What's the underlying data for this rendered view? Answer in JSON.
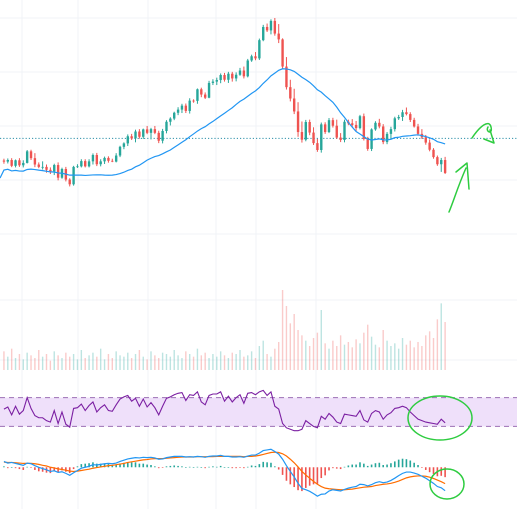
{
  "colors": {
    "up": "#26a69a",
    "down": "#ef5350",
    "ma": "#2196f3",
    "hline": "#2a8fa8",
    "rsi_line": "#7b1fa2",
    "rsi_band": "#efe0fa",
    "rsi_bounds": "#9c6fb5",
    "macd": "#2196f3",
    "signal": "#ff6d00",
    "hist_up": "#26a69a",
    "hist_down": "#ef5350",
    "annotation": "#2ecc40",
    "grid": "#f0f3f7"
  },
  "chart_data": [
    {
      "type": "candlestick",
      "title": "",
      "xlabel": "",
      "ylabel": "",
      "grid": true,
      "ylim": [
        0,
        100
      ],
      "overlays": [
        {
          "type": "moving-average",
          "color": "#2196f3"
        },
        {
          "type": "horizontal-dotted-line",
          "value": 49.1
        }
      ],
      "candles": [
        [
          40.7,
          41.4,
          39.5,
          40.3
        ],
        [
          40.3,
          41.5,
          39.6,
          40.9
        ],
        [
          40.9,
          41.6,
          38.2,
          38.7
        ],
        [
          38.7,
          41.1,
          38.1,
          40.8
        ],
        [
          40.8,
          41.6,
          38.3,
          38.9
        ],
        [
          38.9,
          40.8,
          38.1,
          39.8
        ],
        [
          39.8,
          44.7,
          39.6,
          44.2
        ],
        [
          44.2,
          44.8,
          40.9,
          41.6
        ],
        [
          41.6,
          43.5,
          38.2,
          39.2
        ],
        [
          39.2,
          40.0,
          37.8,
          38.3
        ],
        [
          38.3,
          40.4,
          37.3,
          38.3
        ],
        [
          38.3,
          39.2,
          36.1,
          37.2
        ],
        [
          37.2,
          38.1,
          35.6,
          36.6
        ],
        [
          36.6,
          39.5,
          35.2,
          39.0
        ],
        [
          39.0,
          40.0,
          33.2,
          34.2
        ],
        [
          34.2,
          38.0,
          33.8,
          37.5
        ],
        [
          37.5,
          38.3,
          32.8,
          33.5
        ],
        [
          33.5,
          34.0,
          30.9,
          31.7
        ],
        [
          31.7,
          38.7,
          31.2,
          38.3
        ],
        [
          38.3,
          39.3,
          37.9,
          38.5
        ],
        [
          38.5,
          41.2,
          38.1,
          40.5
        ],
        [
          40.5,
          41.2,
          38.1,
          38.5
        ],
        [
          38.5,
          41.2,
          38.1,
          40.4
        ],
        [
          40.4,
          43.4,
          39.2,
          42.8
        ],
        [
          42.8,
          43.6,
          38.6,
          39.3
        ],
        [
          39.3,
          41.2,
          38.5,
          40.4
        ],
        [
          40.4,
          42.2,
          39.4,
          41.7
        ],
        [
          41.7,
          42.3,
          39.9,
          40.6
        ],
        [
          40.6,
          41.4,
          40.1,
          40.3
        ],
        [
          40.3,
          43.5,
          40.0,
          42.6
        ],
        [
          42.6,
          46.3,
          42.0,
          45.9
        ],
        [
          45.9,
          47.6,
          45.0,
          47.2
        ],
        [
          47.2,
          50.6,
          46.2,
          49.9
        ],
        [
          49.9,
          50.8,
          48.5,
          49.1
        ],
        [
          49.1,
          52.4,
          47.6,
          51.7
        ],
        [
          51.7,
          52.6,
          49.0,
          49.7
        ],
        [
          49.7,
          52.8,
          48.9,
          52.5
        ],
        [
          52.5,
          53.8,
          50.7,
          51.2
        ],
        [
          51.2,
          53.1,
          48.7,
          52.6
        ],
        [
          52.6,
          53.8,
          50.7,
          51.2
        ],
        [
          51.2,
          52.0,
          47.3,
          48.2
        ],
        [
          48.2,
          52.7,
          47.2,
          51.9
        ],
        [
          51.9,
          56.0,
          51.0,
          55.4
        ],
        [
          55.4,
          57.1,
          54.0,
          56.6
        ],
        [
          56.6,
          59.2,
          56.0,
          58.8
        ],
        [
          58.8,
          60.9,
          57.9,
          60.0
        ],
        [
          60.0,
          62.2,
          58.7,
          61.5
        ],
        [
          61.5,
          62.3,
          58.7,
          59.5
        ],
        [
          59.5,
          64.3,
          58.5,
          63.4
        ],
        [
          63.4,
          63.9,
          62.6,
          63.3
        ],
        [
          63.3,
          68.0,
          62.2,
          67.7
        ],
        [
          67.7,
          68.3,
          64.7,
          65.7
        ],
        [
          65.7,
          66.5,
          64.0,
          64.5
        ],
        [
          64.5,
          70.9,
          64.3,
          70.1
        ],
        [
          70.1,
          71.5,
          69.3,
          70.6
        ],
        [
          70.6,
          72.1,
          69.3,
          71.2
        ],
        [
          71.2,
          73.7,
          70.0,
          73.1
        ],
        [
          73.1,
          73.9,
          70.6,
          71.3
        ],
        [
          71.3,
          74.3,
          70.1,
          73.6
        ],
        [
          73.6,
          74.3,
          70.6,
          71.8
        ],
        [
          71.8,
          74.1,
          70.7,
          73.2
        ],
        [
          73.2,
          75.8,
          72.8,
          74.8
        ],
        [
          74.8,
          76.3,
          71.8,
          72.6
        ],
        [
          72.6,
          79.2,
          72.2,
          78.6
        ],
        [
          78.6,
          80.8,
          78.1,
          80.2
        ],
        [
          80.2,
          81.8,
          78.7,
          79.4
        ],
        [
          79.4,
          86.9,
          78.8,
          86.3
        ],
        [
          86.3,
          92.1,
          85.9,
          91.3
        ],
        [
          91.3,
          92.6,
          89.4,
          90.0
        ],
        [
          90.0,
          94.2,
          88.5,
          93.6
        ],
        [
          93.6,
          94.7,
          88.0,
          88.8
        ],
        [
          88.8,
          92.4,
          85.2,
          86.6
        ],
        [
          86.6,
          87.0,
          75.3,
          76.3
        ],
        [
          76.3,
          79.9,
          67.6,
          68.5
        ],
        [
          68.5,
          71.3,
          63.1,
          64.2
        ],
        [
          64.2,
          67.9,
          58.3,
          59.3
        ],
        [
          59.3,
          62.8,
          49.7,
          51.5
        ],
        [
          51.5,
          55.5,
          47.5,
          48.6
        ],
        [
          48.6,
          56.1,
          48.0,
          55.3
        ],
        [
          55.3,
          56.2,
          50.3,
          51.3
        ],
        [
          51.3,
          53.3,
          46.6,
          47.3
        ],
        [
          47.3,
          48.9,
          44.0,
          44.7
        ],
        [
          44.7,
          55.1,
          43.7,
          54.4
        ],
        [
          54.4,
          55.2,
          50.8,
          51.5
        ],
        [
          51.5,
          56.8,
          51.1,
          56.0
        ],
        [
          56.0,
          56.9,
          53.2,
          53.9
        ],
        [
          53.9,
          56.2,
          48.9,
          49.4
        ],
        [
          49.4,
          51.1,
          47.7,
          48.5
        ],
        [
          48.5,
          56.2,
          47.6,
          55.4
        ],
        [
          55.4,
          56.2,
          54.1,
          54.8
        ],
        [
          54.8,
          56.4,
          53.4,
          54.2
        ],
        [
          54.2,
          55.7,
          51.9,
          53.0
        ],
        [
          53.0,
          58.0,
          52.5,
          57.5
        ],
        [
          57.5,
          58.5,
          48.3,
          48.9
        ],
        [
          48.9,
          49.7,
          44.4,
          45.1
        ],
        [
          45.1,
          52.9,
          44.3,
          52.5
        ],
        [
          52.5,
          55.6,
          52.0,
          55.0
        ],
        [
          55.0,
          56.5,
          52.9,
          53.6
        ],
        [
          53.6,
          54.5,
          46.9,
          47.7
        ],
        [
          47.7,
          51.5,
          46.9,
          50.8
        ],
        [
          50.8,
          53.5,
          49.1,
          52.6
        ],
        [
          52.6,
          57.3,
          51.7,
          56.7
        ],
        [
          56.7,
          58.0,
          56.1,
          57.2
        ],
        [
          57.2,
          59.9,
          55.7,
          59.0
        ],
        [
          59.0,
          60.8,
          57.8,
          58.3
        ],
        [
          58.3,
          59.0,
          55.3,
          56.1
        ],
        [
          56.1,
          56.9,
          53.2,
          53.6
        ],
        [
          53.6,
          54.6,
          50.1,
          50.8
        ],
        [
          50.8,
          52.6,
          48.9,
          49.5
        ],
        [
          49.5,
          50.4,
          46.7,
          47.5
        ],
        [
          47.5,
          48.7,
          44.2,
          44.8
        ],
        [
          44.8,
          45.4,
          41.4,
          42.0
        ],
        [
          42.0,
          42.6,
          38.7,
          39.3
        ],
        [
          39.3,
          41.7,
          36.4,
          40.9
        ],
        [
          40.9,
          42.1,
          35.6,
          36.0
        ]
      ],
      "volumes": [
        14,
        10,
        16,
        9,
        12,
        8,
        13,
        11,
        9,
        15,
        10,
        12,
        7,
        14,
        11,
        9,
        13,
        10,
        12,
        8,
        15,
        9,
        11,
        13,
        10,
        16,
        8,
        12,
        9,
        14,
        11,
        10,
        13,
        9,
        12,
        15,
        10,
        8,
        14,
        11,
        9,
        13,
        12,
        10,
        15,
        11,
        9,
        14,
        12,
        10,
        16,
        11,
        13,
        9,
        12,
        10,
        14,
        11,
        9,
        13,
        12,
        15,
        10,
        11,
        14,
        9,
        18,
        22,
        12,
        10,
        16,
        21,
        60,
        48,
        35,
        42,
        30,
        26,
        22,
        18,
        24,
        28,
        45,
        20,
        16,
        22,
        18,
        26,
        19,
        21,
        17,
        23,
        20,
        28,
        34,
        25,
        19,
        17,
        30,
        22,
        18,
        20,
        16,
        24,
        19,
        22,
        17,
        21,
        18,
        26,
        29,
        24,
        38,
        50,
        36
      ]
    },
    {
      "type": "line",
      "indicator": "RSI",
      "ylim": [
        0,
        100
      ],
      "bands": [
        30,
        70
      ],
      "values": [
        54,
        57,
        46,
        58,
        47,
        52,
        70,
        55,
        45,
        42,
        42,
        38,
        36,
        52,
        34,
        50,
        33,
        29,
        55,
        56,
        61,
        52,
        59,
        64,
        50,
        56,
        60,
        52,
        51,
        60,
        68,
        71,
        73,
        65,
        69,
        58,
        68,
        57,
        63,
        56,
        46,
        58,
        69,
        71,
        74,
        76,
        77,
        66,
        74,
        73,
        78,
        64,
        60,
        73,
        75,
        75,
        78,
        65,
        72,
        64,
        70,
        74,
        62,
        76,
        77,
        74,
        78,
        80,
        73,
        78,
        58,
        54,
        34,
        28,
        26,
        24,
        24,
        26,
        38,
        34,
        30,
        28,
        44,
        40,
        48,
        43,
        36,
        34,
        47,
        46,
        45,
        44,
        52,
        39,
        36,
        48,
        52,
        50,
        40,
        46,
        49,
        55,
        56,
        58,
        56,
        50,
        45,
        40,
        38,
        36,
        35,
        34,
        33,
        40,
        35
      ]
    },
    {
      "type": "line",
      "indicator": "MACD",
      "ylim": [
        -13,
        6
      ],
      "series": [
        {
          "values": [
            1.8,
            1.3,
            1.5,
            1.2,
            0.9,
            0.6,
            1.3,
            1.1,
            0.5,
            0.0,
            -0.4,
            -0.8,
            -1.3,
            -1.1,
            -1.6,
            -1.4,
            -1.9,
            -2.5,
            -1.7,
            -1.0,
            -0.3,
            0.0,
            0.3,
            0.8,
            0.7,
            0.9,
            1.1,
            1.2,
            1.1,
            1.3,
            1.8,
            2.2,
            2.6,
            2.8,
            3.0,
            2.9,
            3.1,
            3.0,
            3.1,
            2.9,
            2.5,
            2.6,
            3.0,
            3.2,
            3.4,
            3.4,
            3.4,
            3.2,
            3.3,
            3.2,
            3.4,
            3.3,
            3.1,
            3.4,
            3.5,
            3.5,
            3.7,
            3.4,
            3.4,
            3.2,
            3.2,
            3.3,
            3.1,
            3.5,
            3.8,
            3.8,
            4.4,
            5.2,
            5.4,
            5.6,
            4.9,
            4.1,
            2.5,
            0.5,
            -1.3,
            -3.0,
            -5.0,
            -6.6,
            -7.0,
            -7.5,
            -8.2,
            -9.0,
            -8.4,
            -8.3,
            -7.4,
            -7.0,
            -7.2,
            -7.4,
            -6.9,
            -6.5,
            -6.2,
            -6.0,
            -5.3,
            -5.4,
            -5.8,
            -5.4,
            -4.8,
            -4.5,
            -4.8,
            -4.6,
            -4.1,
            -3.4,
            -2.6,
            -1.9,
            -1.5,
            -1.5,
            -1.8,
            -2.2,
            -2.8,
            -3.4,
            -4.2,
            -5.0,
            -6.0,
            -6.4,
            -7.3
          ]
        },
        {
          "values": [
            1.6,
            1.5,
            1.5,
            1.4,
            1.3,
            1.2,
            1.2,
            1.2,
            1.1,
            0.9,
            0.6,
            0.4,
            0.0,
            -0.2,
            -0.5,
            -0.7,
            -0.9,
            -1.2,
            -1.3,
            -1.2,
            -1.0,
            -0.8,
            -0.6,
            -0.3,
            -0.1,
            0.1,
            0.3,
            0.5,
            0.6,
            0.8,
            1.0,
            1.2,
            1.5,
            1.7,
            1.9,
            2.1,
            2.3,
            2.4,
            2.6,
            2.7,
            2.7,
            2.7,
            2.8,
            2.9,
            3.0,
            3.1,
            3.2,
            3.2,
            3.2,
            3.2,
            3.3,
            3.3,
            3.3,
            3.3,
            3.3,
            3.4,
            3.4,
            3.4,
            3.4,
            3.4,
            3.4,
            3.4,
            3.3,
            3.4,
            3.4,
            3.5,
            3.7,
            4.0,
            4.3,
            4.6,
            4.7,
            4.6,
            4.2,
            3.5,
            2.5,
            1.4,
            0.1,
            -1.3,
            -2.4,
            -3.4,
            -4.4,
            -5.3,
            -6.0,
            -6.5,
            -6.7,
            -6.8,
            -6.9,
            -7.0,
            -7.0,
            -6.9,
            -6.8,
            -6.6,
            -6.4,
            -6.2,
            -6.1,
            -6.0,
            -5.7,
            -5.5,
            -5.3,
            -5.2,
            -5.0,
            -4.7,
            -4.3,
            -3.8,
            -3.3,
            -3.0,
            -2.8,
            -2.7,
            -2.7,
            -2.8,
            -3.1,
            -3.5,
            -4.0,
            -4.5,
            -5.1
          ]
        }
      ],
      "histogram": true
    }
  ]
}
